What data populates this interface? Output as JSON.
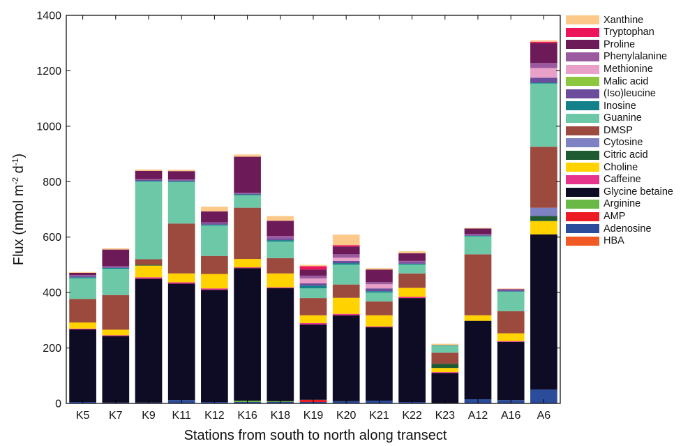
{
  "chart_data": {
    "type": "bar",
    "stacked": true,
    "xlabel": "Stations from south to north along transect",
    "ylabel": {
      "prefix": "Flux (nmol m",
      "sup1": "-2",
      "mid": " d",
      "sup2": "-1",
      "suffix": ")"
    },
    "ylim": [
      0,
      1400
    ],
    "yticks": [
      0,
      200,
      400,
      600,
      800,
      1000,
      1200,
      1400
    ],
    "categories": [
      "K5",
      "K7",
      "K9",
      "K11",
      "K12",
      "K16",
      "K18",
      "K19",
      "K20",
      "K21",
      "K22",
      "K23",
      "A12",
      "A16",
      "A6"
    ],
    "legend_placement": "right, outside plot",
    "legend_order": [
      "Xanthine",
      "Tryptophan",
      "Proline",
      "Phenylalanine",
      "Methionine",
      "Malic acid",
      "(Iso)leucine",
      "Inosine",
      "Guanine",
      "DMSP",
      "Cytosine",
      "Citric acid",
      "Choline",
      "Caffeine",
      "Glycine betaine",
      "Arginine",
      "AMP",
      "Adenosine",
      "HBA"
    ],
    "series": [
      {
        "name": "HBA",
        "color": "#f15a24",
        "values": [
          0,
          0,
          0,
          0,
          0,
          0,
          0,
          0,
          0,
          0,
          0,
          0,
          0,
          0,
          0
        ]
      },
      {
        "name": "Adenosine",
        "color": "#2b4c9b",
        "values": [
          5,
          3,
          3,
          12,
          5,
          5,
          5,
          5,
          8,
          10,
          5,
          2,
          15,
          12,
          50
        ]
      },
      {
        "name": "AMP",
        "color": "#ed1c24",
        "values": [
          0,
          0,
          0,
          0,
          0,
          0,
          0,
          8,
          0,
          0,
          0,
          0,
          0,
          0,
          0
        ]
      },
      {
        "name": "Arginine",
        "color": "#6ab946",
        "values": [
          0,
          0,
          0,
          0,
          0,
          5,
          3,
          0,
          0,
          0,
          0,
          0,
          0,
          0,
          0
        ]
      },
      {
        "name": "Glycine betaine",
        "color": "#0e0c24",
        "values": [
          262,
          240,
          447,
          420,
          405,
          478,
          408,
          272,
          310,
          265,
          375,
          108,
          283,
          210,
          560
        ]
      },
      {
        "name": "Caffeine",
        "color": "#e6348c",
        "values": [
          3,
          3,
          5,
          5,
          5,
          3,
          3,
          5,
          5,
          3,
          5,
          3,
          0,
          3,
          0
        ]
      },
      {
        "name": "Choline",
        "color": "#ffd200",
        "values": [
          22,
          20,
          42,
          32,
          52,
          30,
          50,
          28,
          58,
          40,
          32,
          15,
          20,
          28,
          48
        ]
      },
      {
        "name": "Citric acid",
        "color": "#1e5a32",
        "values": [
          0,
          0,
          3,
          0,
          0,
          0,
          0,
          0,
          0,
          0,
          0,
          15,
          0,
          0,
          18
        ]
      },
      {
        "name": "Cytosine",
        "color": "#7f82c2",
        "values": [
          0,
          0,
          0,
          0,
          0,
          0,
          0,
          0,
          0,
          0,
          0,
          0,
          0,
          0,
          30
        ]
      },
      {
        "name": "DMSP",
        "color": "#9c4a3e",
        "values": [
          85,
          125,
          20,
          180,
          65,
          185,
          55,
          62,
          48,
          50,
          52,
          40,
          220,
          80,
          220
        ]
      },
      {
        "name": "Guanine",
        "color": "#6dc8a8",
        "values": [
          75,
          95,
          280,
          150,
          110,
          45,
          60,
          35,
          72,
          32,
          32,
          25,
          65,
          70,
          228
        ]
      },
      {
        "name": "Inosine",
        "color": "#13808a",
        "values": [
          3,
          3,
          3,
          3,
          3,
          3,
          5,
          10,
          5,
          5,
          3,
          2,
          2,
          2,
          3
        ]
      },
      {
        "name": "(Iso)leucine",
        "color": "#6b4d9c",
        "values": [
          5,
          3,
          3,
          3,
          5,
          3,
          5,
          8,
          8,
          10,
          5,
          0,
          3,
          3,
          18
        ]
      },
      {
        "name": "Malic acid",
        "color": "#8dc63f",
        "values": [
          0,
          0,
          0,
          0,
          0,
          0,
          0,
          0,
          0,
          0,
          0,
          0,
          0,
          0,
          0
        ]
      },
      {
        "name": "Methionine",
        "color": "#e8a0c8",
        "values": [
          0,
          0,
          0,
          0,
          0,
          0,
          0,
          18,
          12,
          15,
          0,
          0,
          0,
          0,
          35
        ]
      },
      {
        "name": "Phenylalanine",
        "color": "#9b5aa0",
        "values": [
          3,
          3,
          3,
          3,
          3,
          3,
          10,
          10,
          12,
          8,
          5,
          0,
          3,
          5,
          18
        ]
      },
      {
        "name": "Proline",
        "color": "#6d1b58",
        "values": [
          8,
          60,
          30,
          30,
          40,
          130,
          55,
          22,
          28,
          45,
          28,
          0,
          20,
          0,
          72
        ]
      },
      {
        "name": "Tryptophan",
        "color": "#ec145a",
        "values": [
          0,
          0,
          0,
          0,
          0,
          0,
          0,
          12,
          5,
          0,
          0,
          0,
          0,
          0,
          5
        ]
      },
      {
        "name": "Xanthine",
        "color": "#fdc98a",
        "values": [
          3,
          5,
          5,
          5,
          17,
          8,
          17,
          5,
          38,
          5,
          7,
          5,
          2,
          2,
          5
        ]
      }
    ]
  }
}
